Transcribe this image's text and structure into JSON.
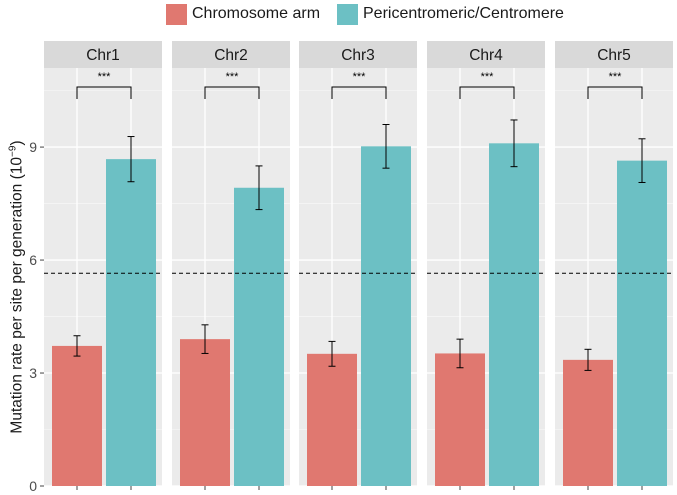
{
  "chart_data": {
    "type": "bar",
    "ylabel": "Mutation rate per site per generation (10",
    "ylabel_exponent": "−9",
    "ylabel_close": ")",
    "ylim": [
      0,
      11.1
    ],
    "yticks": [
      0,
      3,
      6,
      9
    ],
    "yticklabels": [
      "0",
      "3",
      "6",
      "9"
    ],
    "grid": true,
    "legend_position": "top",
    "reference_line": {
      "y": 5.65,
      "style": "dashed"
    },
    "significance_label": "***",
    "series": [
      {
        "name": "Chromosome arm",
        "color": "#E07870"
      },
      {
        "name": "Pericentromeric/Centromere",
        "color": "#6CC0C4"
      }
    ],
    "panels": [
      {
        "title": "Chr1",
        "values": [
          3.72,
          8.68
        ],
        "errors": [
          0.27,
          0.6
        ]
      },
      {
        "title": "Chr2",
        "values": [
          3.9,
          7.92
        ],
        "errors": [
          0.38,
          0.58
        ]
      },
      {
        "title": "Chr3",
        "values": [
          3.51,
          9.02
        ],
        "errors": [
          0.33,
          0.58
        ]
      },
      {
        "title": "Chr4",
        "values": [
          3.52,
          9.1
        ],
        "errors": [
          0.38,
          0.62
        ]
      },
      {
        "title": "Chr5",
        "values": [
          3.35,
          8.64
        ],
        "errors": [
          0.28,
          0.58
        ]
      }
    ]
  }
}
